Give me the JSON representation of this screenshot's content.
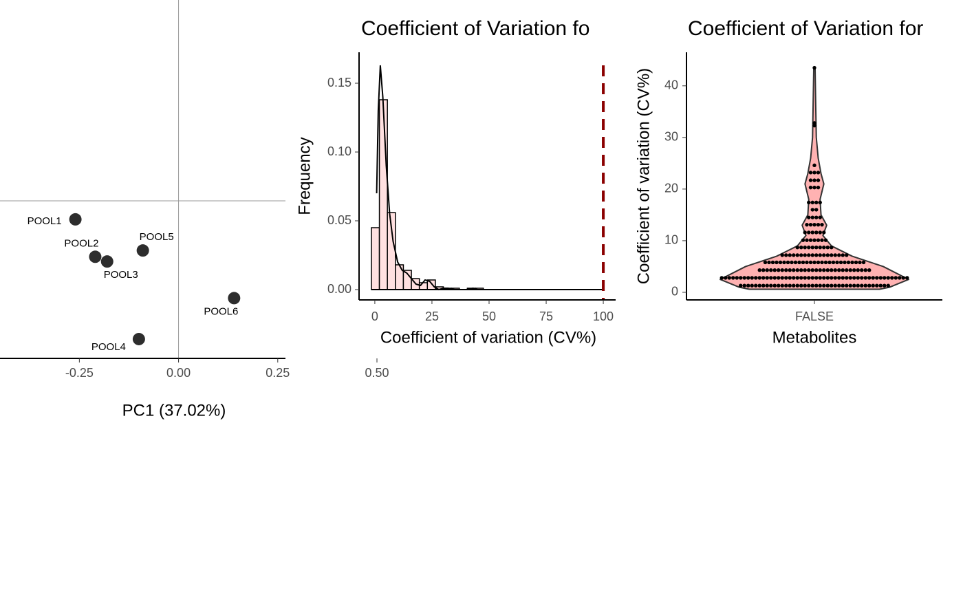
{
  "chart_data": [
    {
      "type": "scatter",
      "x_label": "PC1 (37.02%)",
      "xlim": [
        -0.45,
        0.5
      ],
      "ylim": [
        -0.4,
        0.51
      ],
      "xticks": [
        {
          "value": -0.25,
          "label": "-0.25"
        },
        {
          "value": 0,
          "label": "0.00"
        },
        {
          "value": 0.25,
          "label": "0.25"
        },
        {
          "value": 0.5,
          "label": "0.50"
        }
      ],
      "color": "#222222",
      "labels": [
        "POOL1",
        "POOL2",
        "POOL3",
        "POOL5",
        "POOL6",
        "POOL4"
      ],
      "x": [
        -0.26,
        -0.21,
        -0.18,
        -0.09,
        0.14,
        -0.1
      ],
      "y": [
        -0.047,
        -0.142,
        -0.154,
        -0.126,
        -0.247,
        -0.351
      ]
    },
    {
      "type": "histogram",
      "title": "Coefficient of Variation fo",
      "x_label": "Coefficient of variation (CV%)",
      "y_label": "Frequency",
      "xlim": [
        -6.9,
        105.4
      ],
      "ylim": [
        -0.0075,
        0.1725
      ],
      "xticks": [
        0,
        25,
        50,
        75,
        100
      ],
      "yticks": [
        {
          "value": 0,
          "label": "0.00"
        },
        {
          "value": 0.05,
          "label": "0.05"
        },
        {
          "value": 0.1,
          "label": "0.10"
        },
        {
          "value": 0.15,
          "label": "0.15"
        }
      ],
      "color": "#ffe0e0",
      "bins": [
        -1.5,
        2,
        5.5,
        9,
        12.5,
        16,
        19.5,
        23,
        26.5,
        30,
        33.5,
        37,
        40.5,
        44,
        47.5
      ],
      "values": [
        0.045,
        0.138,
        0.056,
        0.018,
        0.014,
        0.008,
        0.005,
        0.007,
        0.002,
        0.001,
        0.001,
        0,
        0.001,
        0.001
      ],
      "density": {
        "x": [
          0.8,
          1.5,
          2.4,
          3.5,
          5,
          6.5,
          8,
          10,
          12,
          14,
          16,
          18,
          20,
          22,
          24,
          26,
          28,
          30,
          32,
          35,
          40,
          43,
          45,
          47
        ],
        "y": [
          0.07,
          0.13,
          0.163,
          0.14,
          0.09,
          0.055,
          0.035,
          0.02,
          0.014,
          0.012,
          0.008,
          0.004,
          0.003,
          0.007,
          0.006,
          0.002,
          0,
          0.001,
          0.001,
          0,
          0,
          0.001,
          0,
          0
        ]
      },
      "threshold": 100,
      "threshold_color": "#8b0000"
    },
    {
      "type": "violin",
      "title": "Coefficient of Variation for",
      "x_label": "Metabolites",
      "y_label": "Coefficient of variation (CV%)",
      "categories": [
        "FALSE"
      ],
      "ylim": [
        -1.47,
        46.5
      ],
      "yticks": [
        0,
        10,
        20,
        30,
        40
      ],
      "color": "#ffaaaa",
      "violin": {
        "y": [
          0.6,
          1,
          2.5,
          5,
          7,
          9,
          11,
          13,
          15,
          18,
          21,
          23,
          26,
          30,
          35,
          43.5
        ],
        "width": [
          0.69,
          0.8,
          1,
          0.73,
          0.4,
          0.18,
          0.09,
          0.13,
          0.07,
          0.06,
          0.1,
          0.07,
          0.04,
          0.02,
          0.015,
          0.007
        ]
      },
      "dots": {
        "y": [
          1.3,
          2.8,
          4.3,
          5.8,
          7.2,
          8.7,
          10.1,
          11.6,
          13.1,
          14.5,
          16,
          17.4,
          20.3,
          21.7,
          23.2,
          24.6,
          32.3,
          32.8,
          43.5
        ],
        "counts": [
          40,
          50,
          30,
          27,
          18,
          10,
          7,
          6,
          5,
          4,
          2,
          4,
          3,
          3,
          3,
          1,
          1,
          1,
          1
        ]
      }
    }
  ]
}
